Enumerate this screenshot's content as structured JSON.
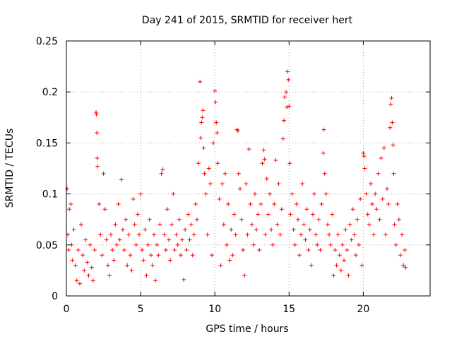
{
  "chart_data": {
    "type": "scatter",
    "title": "Day 241 of 2015, SRMTID for receiver hert",
    "xlabel": "GPS time / hours",
    "ylabel": "SRMTID / TECUs",
    "xlim": [
      0,
      24.5
    ],
    "ylim": [
      0,
      0.25
    ],
    "x_ticks": [
      0,
      5,
      10,
      15,
      20
    ],
    "x_tick_labels": [
      "0",
      "5",
      "10",
      "15",
      "20"
    ],
    "y_ticks": [
      0,
      0.05,
      0.1,
      0.15,
      0.2,
      0.25
    ],
    "y_tick_labels": [
      "0",
      "0.05",
      "0.1",
      "0.15",
      "0.2",
      "0.25"
    ],
    "grid": true,
    "marker": "+",
    "color": "#ff0000",
    "series": [
      {
        "name": "SRMTID",
        "points": [
          [
            0.05,
            0.105
          ],
          [
            0.1,
            0.06
          ],
          [
            0.15,
            0.045
          ],
          [
            0.2,
            0.085
          ],
          [
            0.3,
            0.09
          ],
          [
            0.35,
            0.05
          ],
          [
            0.4,
            0.035
          ],
          [
            0.5,
            0.065
          ],
          [
            0.6,
            0.03
          ],
          [
            0.7,
            0.015
          ],
          [
            0.8,
            0.045
          ],
          [
            0.9,
            0.012
          ],
          [
            1.0,
            0.07
          ],
          [
            1.1,
            0.04
          ],
          [
            1.2,
            0.025
          ],
          [
            1.3,
            0.055
          ],
          [
            1.4,
            0.033
          ],
          [
            1.5,
            0.02
          ],
          [
            1.6,
            0.05
          ],
          [
            1.7,
            0.028
          ],
          [
            1.8,
            0.015
          ],
          [
            1.9,
            0.045
          ],
          [
            2.0,
            0.18
          ],
          [
            2.02,
            0.178
          ],
          [
            2.05,
            0.16
          ],
          [
            2.07,
            0.135
          ],
          [
            2.1,
            0.127
          ],
          [
            2.2,
            0.09
          ],
          [
            2.3,
            0.06
          ],
          [
            2.4,
            0.04
          ],
          [
            2.5,
            0.12
          ],
          [
            2.6,
            0.085
          ],
          [
            2.7,
            0.055
          ],
          [
            2.8,
            0.03
          ],
          [
            2.9,
            0.02
          ],
          [
            3.0,
            0.06
          ],
          [
            3.1,
            0.045
          ],
          [
            3.2,
            0.035
          ],
          [
            3.3,
            0.07
          ],
          [
            3.4,
            0.05
          ],
          [
            3.5,
            0.09
          ],
          [
            3.6,
            0.055
          ],
          [
            3.7,
            0.114
          ],
          [
            3.8,
            0.065
          ],
          [
            3.9,
            0.045
          ],
          [
            4.0,
            0.075
          ],
          [
            4.1,
            0.03
          ],
          [
            4.2,
            0.06
          ],
          [
            4.3,
            0.04
          ],
          [
            4.4,
            0.025
          ],
          [
            4.5,
            0.095
          ],
          [
            4.6,
            0.07
          ],
          [
            4.7,
            0.05
          ],
          [
            4.8,
            0.08
          ],
          [
            4.9,
            0.06
          ],
          [
            5.0,
            0.1
          ],
          [
            5.1,
            0.045
          ],
          [
            5.2,
            0.035
          ],
          [
            5.3,
            0.065
          ],
          [
            5.4,
            0.02
          ],
          [
            5.5,
            0.05
          ],
          [
            5.6,
            0.075
          ],
          [
            5.7,
            0.04
          ],
          [
            5.8,
            0.03
          ],
          [
            5.9,
            0.06
          ],
          [
            6.0,
            0.015
          ],
          [
            6.1,
            0.05
          ],
          [
            6.2,
            0.04
          ],
          [
            6.3,
            0.07
          ],
          [
            6.4,
            0.12
          ],
          [
            6.5,
            0.124
          ],
          [
            6.6,
            0.06
          ],
          [
            6.7,
            0.045
          ],
          [
            6.8,
            0.085
          ],
          [
            6.9,
            0.055
          ],
          [
            7.0,
            0.035
          ],
          [
            7.1,
            0.07
          ],
          [
            7.2,
            0.1
          ],
          [
            7.3,
            0.045
          ],
          [
            7.4,
            0.06
          ],
          [
            7.5,
            0.05
          ],
          [
            7.6,
            0.075
          ],
          [
            7.7,
            0.04
          ],
          [
            7.8,
            0.055
          ],
          [
            7.9,
            0.016
          ],
          [
            8.0,
            0.065
          ],
          [
            8.1,
            0.045
          ],
          [
            8.2,
            0.08
          ],
          [
            8.3,
            0.055
          ],
          [
            8.4,
            0.07
          ],
          [
            8.5,
            0.04
          ],
          [
            8.6,
            0.06
          ],
          [
            8.7,
            0.09
          ],
          [
            8.8,
            0.075
          ],
          [
            8.9,
            0.13
          ],
          [
            9.0,
            0.21
          ],
          [
            9.05,
            0.155
          ],
          [
            9.1,
            0.17
          ],
          [
            9.15,
            0.175
          ],
          [
            9.2,
            0.182
          ],
          [
            9.25,
            0.145
          ],
          [
            9.3,
            0.12
          ],
          [
            9.4,
            0.1
          ],
          [
            9.5,
            0.06
          ],
          [
            9.6,
            0.125
          ],
          [
            9.7,
            0.11
          ],
          [
            9.8,
            0.04
          ],
          [
            9.9,
            0.15
          ],
          [
            10.0,
            0.201
          ],
          [
            10.05,
            0.19
          ],
          [
            10.1,
            0.17
          ],
          [
            10.15,
            0.16
          ],
          [
            10.2,
            0.13
          ],
          [
            10.3,
            0.095
          ],
          [
            10.4,
            0.03
          ],
          [
            10.5,
            0.11
          ],
          [
            10.6,
            0.07
          ],
          [
            10.7,
            0.12
          ],
          [
            10.8,
            0.05
          ],
          [
            10.9,
            0.09
          ],
          [
            11.0,
            0.035
          ],
          [
            11.1,
            0.065
          ],
          [
            11.2,
            0.04
          ],
          [
            11.3,
            0.08
          ],
          [
            11.4,
            0.06
          ],
          [
            11.5,
            0.163
          ],
          [
            11.55,
            0.162
          ],
          [
            11.6,
            0.12
          ],
          [
            11.7,
            0.105
          ],
          [
            11.8,
            0.075
          ],
          [
            11.9,
            0.045
          ],
          [
            12.0,
            0.02
          ],
          [
            12.1,
            0.11
          ],
          [
            12.2,
            0.06
          ],
          [
            12.3,
            0.144
          ],
          [
            12.4,
            0.09
          ],
          [
            12.5,
            0.07
          ],
          [
            12.6,
            0.05
          ],
          [
            12.7,
            0.1
          ],
          [
            12.8,
            0.065
          ],
          [
            12.9,
            0.08
          ],
          [
            13.0,
            0.045
          ],
          [
            13.1,
            0.09
          ],
          [
            13.2,
            0.13
          ],
          [
            13.3,
            0.143
          ],
          [
            13.35,
            0.134
          ],
          [
            13.4,
            0.06
          ],
          [
            13.5,
            0.115
          ],
          [
            13.6,
            0.08
          ],
          [
            13.7,
            0.1
          ],
          [
            13.8,
            0.065
          ],
          [
            13.9,
            0.05
          ],
          [
            14.0,
            0.09
          ],
          [
            14.1,
            0.133
          ],
          [
            14.2,
            0.07
          ],
          [
            14.3,
            0.11
          ],
          [
            14.4,
            0.06
          ],
          [
            14.5,
            0.085
          ],
          [
            14.6,
            0.154
          ],
          [
            14.65,
            0.172
          ],
          [
            14.7,
            0.195
          ],
          [
            14.8,
            0.2
          ],
          [
            14.85,
            0.185
          ],
          [
            14.9,
            0.22
          ],
          [
            14.95,
            0.212
          ],
          [
            15.0,
            0.186
          ],
          [
            15.05,
            0.13
          ],
          [
            15.1,
            0.08
          ],
          [
            15.2,
            0.1
          ],
          [
            15.3,
            0.065
          ],
          [
            15.4,
            0.05
          ],
          [
            15.5,
            0.09
          ],
          [
            15.6,
            0.075
          ],
          [
            15.7,
            0.04
          ],
          [
            15.8,
            0.06
          ],
          [
            15.9,
            0.11
          ],
          [
            16.0,
            0.07
          ],
          [
            16.1,
            0.055
          ],
          [
            16.2,
            0.085
          ],
          [
            16.3,
            0.045
          ],
          [
            16.4,
            0.065
          ],
          [
            16.5,
            0.03
          ],
          [
            16.6,
            0.08
          ],
          [
            16.7,
            0.1
          ],
          [
            16.8,
            0.06
          ],
          [
            16.9,
            0.05
          ],
          [
            17.0,
            0.075
          ],
          [
            17.1,
            0.045
          ],
          [
            17.2,
            0.09
          ],
          [
            17.3,
            0.14
          ],
          [
            17.35,
            0.163
          ],
          [
            17.4,
            0.12
          ],
          [
            17.5,
            0.1
          ],
          [
            17.6,
            0.07
          ],
          [
            17.7,
            0.06
          ],
          [
            17.8,
            0.05
          ],
          [
            17.9,
            0.08
          ],
          [
            18.0,
            0.02
          ],
          [
            18.1,
            0.045
          ],
          [
            18.2,
            0.03
          ],
          [
            18.3,
            0.06
          ],
          [
            18.4,
            0.04
          ],
          [
            18.5,
            0.025
          ],
          [
            18.6,
            0.05
          ],
          [
            18.7,
            0.035
          ],
          [
            18.8,
            0.065
          ],
          [
            18.9,
            0.045
          ],
          [
            19.0,
            0.02
          ],
          [
            19.1,
            0.07
          ],
          [
            19.2,
            0.055
          ],
          [
            19.3,
            0.085
          ],
          [
            19.4,
            0.06
          ],
          [
            19.5,
            0.04
          ],
          [
            19.6,
            0.075
          ],
          [
            19.7,
            0.05
          ],
          [
            19.8,
            0.095
          ],
          [
            19.9,
            0.03
          ],
          [
            20.0,
            0.14
          ],
          [
            20.05,
            0.137
          ],
          [
            20.1,
            0.125
          ],
          [
            20.2,
            0.1
          ],
          [
            20.3,
            0.08
          ],
          [
            20.4,
            0.07
          ],
          [
            20.5,
            0.11
          ],
          [
            20.6,
            0.09
          ],
          [
            20.7,
            0.06
          ],
          [
            20.8,
            0.1
          ],
          [
            20.9,
            0.085
          ],
          [
            21.0,
            0.12
          ],
          [
            21.1,
            0.075
          ],
          [
            21.2,
            0.135
          ],
          [
            21.3,
            0.095
          ],
          [
            21.4,
            0.145
          ],
          [
            21.5,
            0.06
          ],
          [
            21.6,
            0.105
          ],
          [
            21.7,
            0.09
          ],
          [
            21.8,
            0.165
          ],
          [
            21.85,
            0.188
          ],
          [
            21.9,
            0.194
          ],
          [
            21.95,
            0.17
          ],
          [
            22.0,
            0.148
          ],
          [
            22.05,
            0.12
          ],
          [
            22.1,
            0.07
          ],
          [
            22.2,
            0.05
          ],
          [
            22.3,
            0.09
          ],
          [
            22.4,
            0.075
          ],
          [
            22.5,
            0.04
          ],
          [
            22.6,
            0.06
          ],
          [
            22.7,
            0.03
          ],
          [
            22.8,
            0.045
          ],
          [
            22.85,
            0.028
          ]
        ]
      }
    ]
  }
}
